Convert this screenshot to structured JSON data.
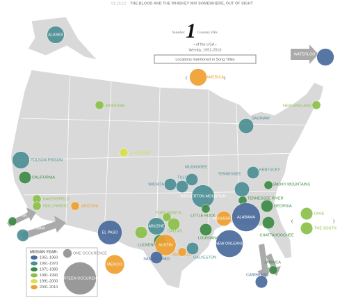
{
  "header": {
    "time": "01:25:12",
    "lyric": "THE BLOOD AND THE WHISKEY MIX SOMEWHERE, OUT OF SIGHT"
  },
  "title": {
    "prefix": "Number",
    "number": "1",
    "suffix": "Country Hits"
  },
  "subtitle": "• of the USA •",
  "period": "Weekly, 1951-2010",
  "caption": "Locations mentioned in Song Titles",
  "legend": {
    "heading": "MEDIAN YEAR:",
    "eras": [
      {
        "label": "1951-1960",
        "color": "#4a6a9c"
      },
      {
        "label": "1961-1970",
        "color": "#4d8f95"
      },
      {
        "label": "1971-1980",
        "color": "#3d8a45"
      },
      {
        "label": "1981-1990",
        "color": "#8cc04b"
      },
      {
        "label": "1991-2000",
        "color": "#d8e04a"
      },
      {
        "label": "2001-2010",
        "color": "#f0a030"
      }
    ],
    "size_min": {
      "label": "ONE OCCURENCE",
      "value": 1
    },
    "size_max": {
      "label": "FOURTEEN OCCURENCES",
      "value": 14
    }
  },
  "locations": [
    {
      "label": "ALASKA",
      "color": "#4d8f95",
      "occurrences": 4
    },
    {
      "label": "WATERLOO",
      "color": "#4a6a9c",
      "occurrences": 4
    },
    {
      "label": "AMERICA",
      "color": "#f0a030",
      "occurrences": 4
    },
    {
      "label": "MONTANA",
      "color": "#8cc04b",
      "occurrences": 1
    },
    {
      "label": "NEW ENGLAND",
      "color": "#8cc04b",
      "occurrences": 1
    },
    {
      "label": "SAGINAW",
      "color": "#4d8f95",
      "occurrences": 3
    },
    {
      "label": "CHEYENNE",
      "color": "#d8e04a",
      "occurrences": 1
    },
    {
      "label": "FOLSOM PRISON",
      "color": "#4d8f95",
      "occurrences": 4
    },
    {
      "label": "CALIFORNIA",
      "color": "#3d8a45",
      "occurrences": 2
    },
    {
      "label": "KENTUCKY",
      "color": "#4d8f95",
      "occurrences": 2
    },
    {
      "label": "SMOKY MOUNTAINS",
      "color": "#3d8a45",
      "occurrences": 1
    },
    {
      "label": "TENNESSEE",
      "color": "#4d8f95",
      "occurrences": 3
    },
    {
      "label": "WICHITA",
      "color": "#4d8f95",
      "occurrences": 2
    },
    {
      "label": "TULSA",
      "color": "#4d8f95",
      "occurrences": 2
    },
    {
      "label": "MUSKOGEE",
      "color": "#4d8f95",
      "occurrences": 2
    },
    {
      "label": "WOLVERTON MOUNTAIN",
      "color": "#4d8f95",
      "occurrences": 7
    },
    {
      "label": "TENNESSEE RIVER",
      "color": "#3d8a45",
      "occurrences": 1
    },
    {
      "label": "BAKERSFIELD",
      "color": "#8cc04b",
      "occurrences": 1
    },
    {
      "label": "HOLLYWOOD",
      "color": "#8cc04b",
      "occurrences": 1
    },
    {
      "label": "ARIZONA",
      "color": "#f0a030",
      "occurrences": 1
    },
    {
      "label": "FORT WORTH",
      "color": "#8cc04b",
      "occurrences": 1
    },
    {
      "label": "DALLAS",
      "color": "#8cc04b",
      "occurrences": 2
    },
    {
      "label": "LITTLE ROCK",
      "color": "#3d8a45",
      "occurrences": 1
    },
    {
      "label": "MISSISSIPPI",
      "color": "#f0a030",
      "occurrences": 3
    },
    {
      "label": "ALABAMA",
      "color": "#4a6a9c",
      "occurrences": 11
    },
    {
      "label": "GEORGIA",
      "color": "#3d8a45",
      "occurrences": 2
    },
    {
      "label": "CHATTAHOOCHEE",
      "color": "#3d8a45",
      "occurrences": 2
    },
    {
      "label": "ABILENE",
      "color": "#4d8f95",
      "occurrences": 4
    },
    {
      "label": "EL PASO",
      "color": "#4a6a9c",
      "occurrences": 8
    },
    {
      "label": "TEXAS",
      "color": "#8cc04b",
      "occurrences": 2
    },
    {
      "label": "LOUISIANA",
      "color": "#3d8a45",
      "occurrences": 2
    },
    {
      "label": "NEW ORLEANS",
      "color": "#4a6a9c",
      "occurrences": 10
    },
    {
      "label": "LUCKENBACH",
      "color": "#3d8a45",
      "occurrences": 2
    },
    {
      "label": "AUSTIN",
      "color": "#f0a030",
      "occurrences": 6
    },
    {
      "label": "SAN ANTONIO",
      "color": "#4a6a9c",
      "occurrences": 2
    },
    {
      "label": "AMARILLO",
      "color": "#f0a030",
      "occurrences": 1
    },
    {
      "label": "GALVESTON",
      "color": "#4d8f95",
      "occurrences": 2
    },
    {
      "label": "MEXICO",
      "color": "#f0a030",
      "occurrences": 5
    },
    {
      "label": "JAPAN",
      "color": "#3d8a45",
      "occurrences": 1
    },
    {
      "label": "VIETNAM",
      "color": "#4d8f95",
      "occurrences": 2
    },
    {
      "label": "DIXIE",
      "color": "#8cc04b",
      "occurrences": 2
    },
    {
      "label": "THE SOUTH",
      "color": "#8cc04b",
      "occurrences": 2
    },
    {
      "label": "CARIBBEAN",
      "color": "#4a6a9c",
      "occurrences": 2
    },
    {
      "label": "JAMAICA",
      "color": "#3d8a45",
      "occurrences": 1
    }
  ]
}
